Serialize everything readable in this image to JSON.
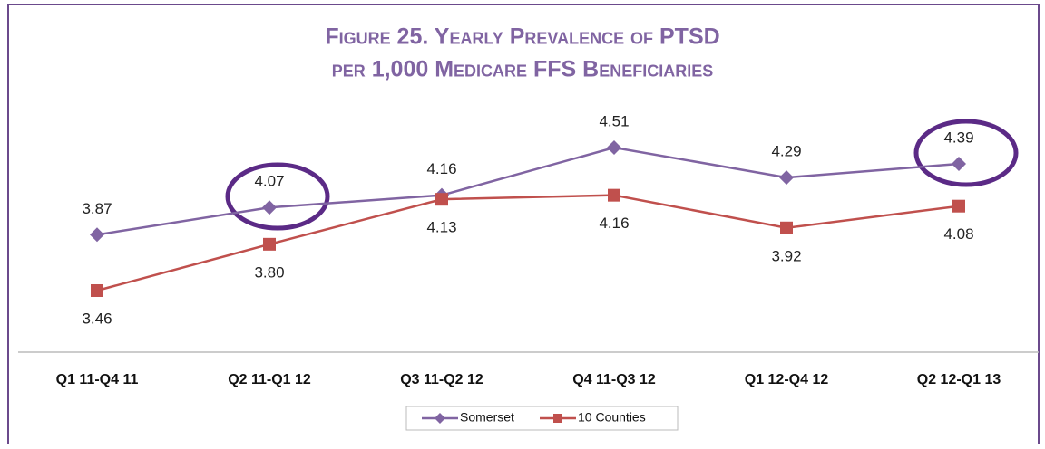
{
  "chart_data": {
    "type": "line",
    "title": [
      "Figure 25. Yearly Prevalence of PTSD",
      "per 1,000 Medicare FFS Beneficiaries"
    ],
    "categories": [
      "Q1 11-Q4 11",
      "Q2 11-Q1 12",
      "Q3 11-Q2 12",
      "Q4 11-Q3 12",
      "Q1 12-Q4 12",
      "Q2 12-Q1 13"
    ],
    "series": [
      {
        "name": "Somerset",
        "color": "#8064a2",
        "marker": "diamond",
        "label_position": "above",
        "values": [
          3.87,
          4.07,
          4.16,
          4.51,
          4.29,
          4.39
        ],
        "value_labels": [
          "3.87",
          "4.07",
          "4.16",
          "4.51",
          "4.29",
          "4.39"
        ]
      },
      {
        "name": "10 Counties",
        "color": "#c0504d",
        "marker": "square",
        "label_position": "below",
        "values": [
          3.46,
          3.8,
          4.13,
          4.16,
          3.92,
          4.08
        ],
        "value_labels": [
          "3.46",
          "3.80",
          "4.13",
          "4.16",
          "3.92",
          "4.08"
        ]
      }
    ],
    "legend": "bottom"
  }
}
